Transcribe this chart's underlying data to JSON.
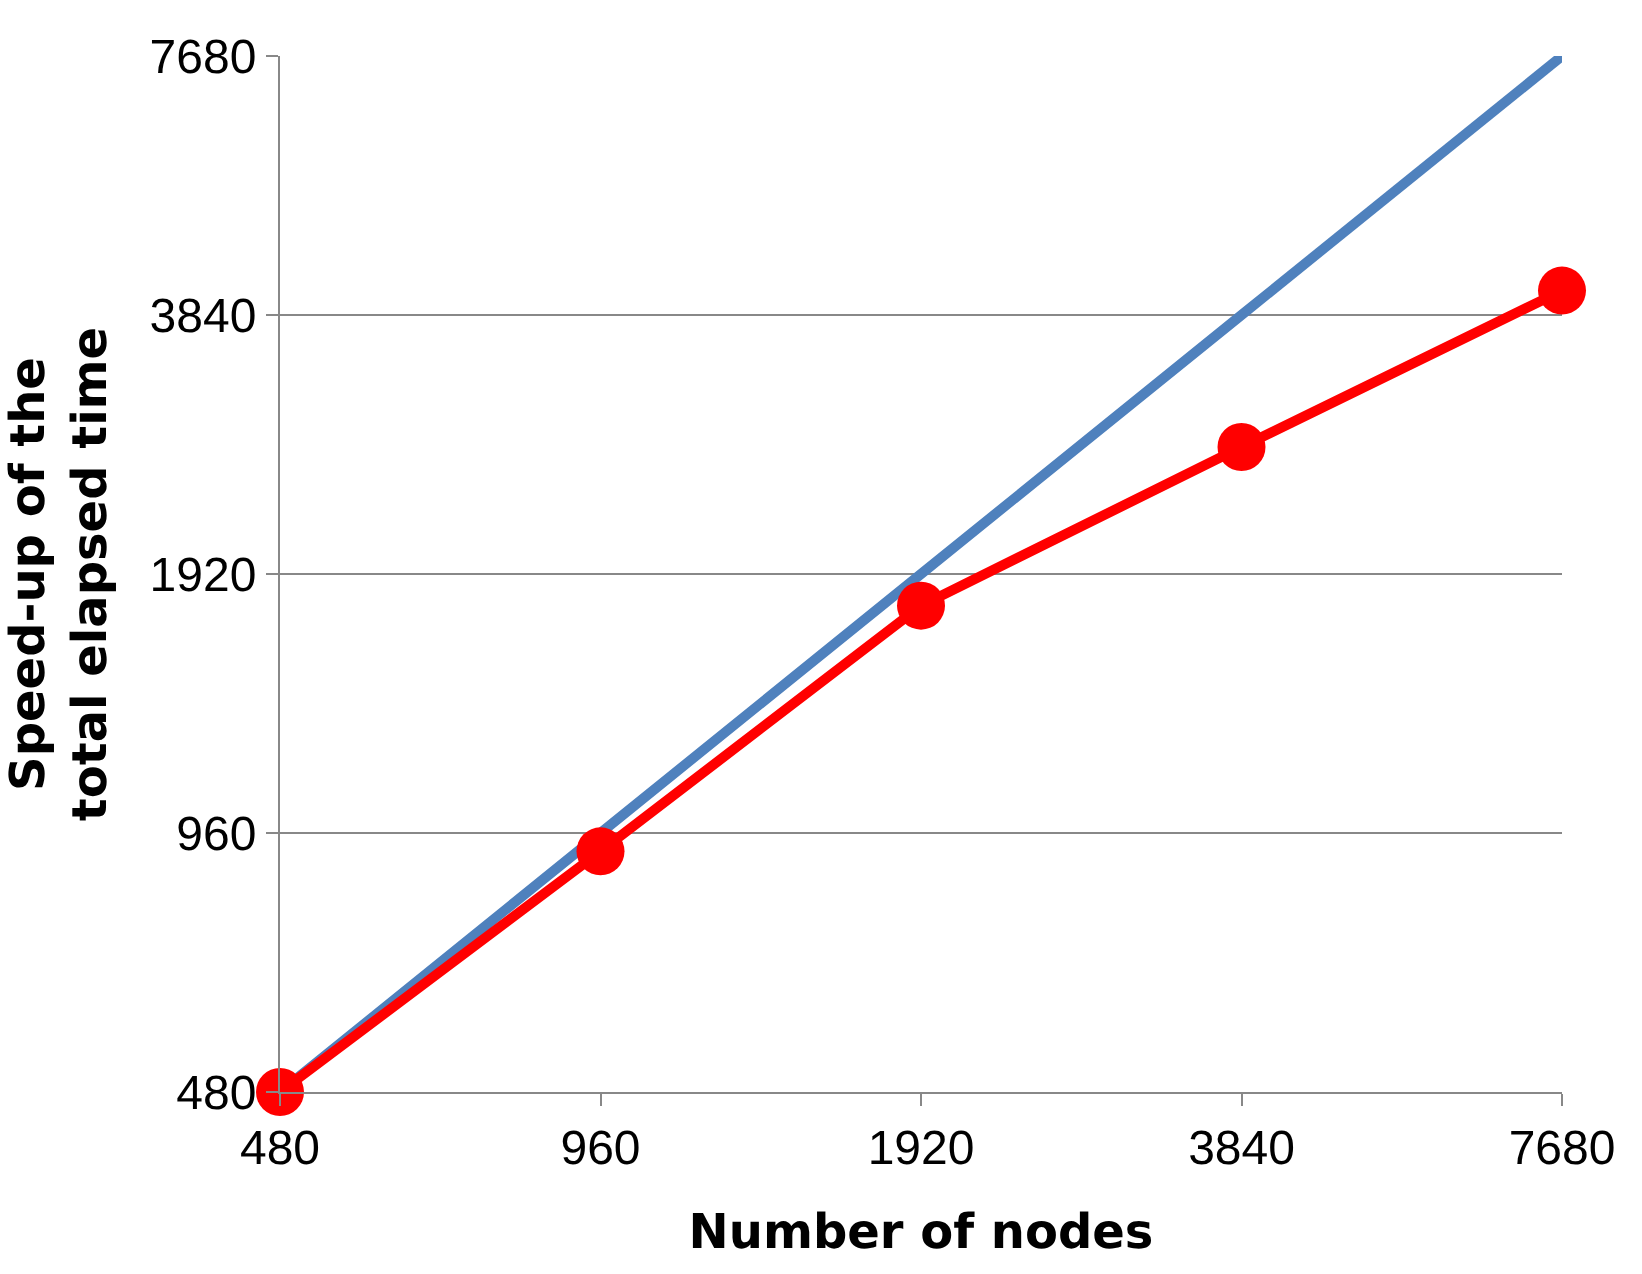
{
  "chart_data": {
    "type": "line",
    "xlabel": "Number of nodes",
    "ylabel": "Speed-up of the\ntotal elapsed time",
    "x": [
      480,
      960,
      1920,
      3840,
      7680
    ],
    "series": [
      {
        "color": "#4f81bd",
        "values": [
          480,
          960,
          1920,
          3840,
          7680
        ],
        "marker": "none"
      },
      {
        "color": "#ff0000",
        "values": [
          480,
          914,
          1764,
          2697,
          4099
        ],
        "marker": "circle"
      }
    ],
    "log": "xy",
    "xlim": [
      480,
      7680
    ],
    "ylim": [
      480,
      7680
    ],
    "xticks": [
      480,
      960,
      1920,
      3840,
      7680
    ],
    "yticks": [
      480,
      960,
      1920,
      3840,
      7680
    ],
    "grid": "y"
  }
}
